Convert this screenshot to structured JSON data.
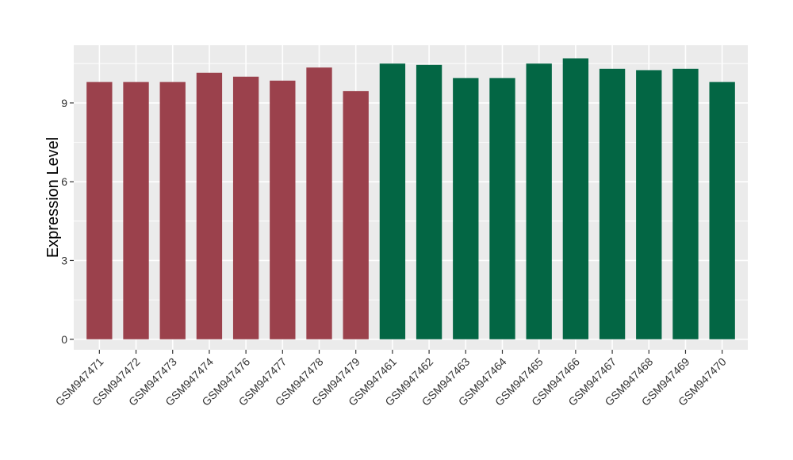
{
  "chart_data": {
    "type": "bar",
    "title": "",
    "xlabel": "",
    "ylabel": "Expression Level",
    "ylim": [
      -0.4,
      11.2
    ],
    "yticks": [
      0,
      3,
      6,
      9
    ],
    "grid": true,
    "legend": "none",
    "colors": {
      "panel": "#ebebeb",
      "grid": "#ffffff",
      "group_a": "#9b414c",
      "group_b": "#036644"
    },
    "categories": [
      "GSM947471",
      "GSM947472",
      "GSM947473",
      "GSM947474",
      "GSM947476",
      "GSM947477",
      "GSM947478",
      "GSM947479",
      "GSM947461",
      "GSM947462",
      "GSM947463",
      "GSM947464",
      "GSM947465",
      "GSM947466",
      "GSM947467",
      "GSM947468",
      "GSM947469",
      "GSM947470"
    ],
    "values": [
      9.8,
      9.8,
      9.8,
      10.15,
      10.0,
      9.85,
      10.35,
      9.45,
      10.5,
      10.45,
      9.95,
      9.95,
      10.5,
      10.7,
      10.3,
      10.25,
      10.3,
      9.8
    ],
    "groups": [
      "a",
      "a",
      "a",
      "a",
      "a",
      "a",
      "a",
      "a",
      "b",
      "b",
      "b",
      "b",
      "b",
      "b",
      "b",
      "b",
      "b",
      "b"
    ]
  }
}
